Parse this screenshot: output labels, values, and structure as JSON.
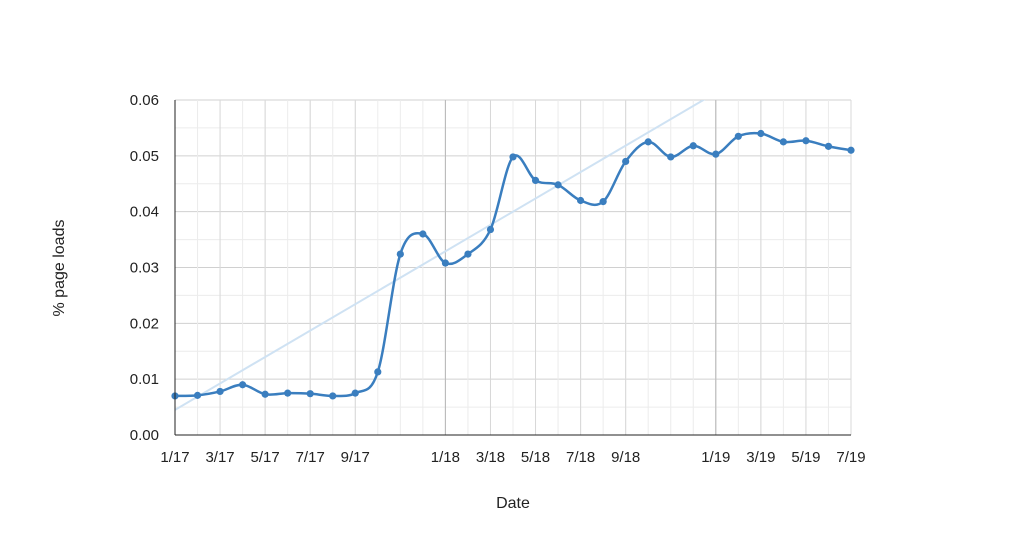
{
  "chart_data": {
    "type": "line",
    "xlabel": "Date",
    "ylabel": "% page loads",
    "ylim": [
      0,
      0.06
    ],
    "yticks": [
      "0.00",
      "0.01",
      "0.02",
      "0.03",
      "0.04",
      "0.05",
      "0.06"
    ],
    "xticks": [
      {
        "date": "2017-01",
        "label": "1/17"
      },
      {
        "date": "2017-03",
        "label": "3/17"
      },
      {
        "date": "2017-05",
        "label": "5/17"
      },
      {
        "date": "2017-07",
        "label": "7/17"
      },
      {
        "date": "2017-09",
        "label": "9/17"
      },
      {
        "date": "2018-01",
        "label": "1/18"
      },
      {
        "date": "2018-03",
        "label": "3/18"
      },
      {
        "date": "2018-05",
        "label": "5/18"
      },
      {
        "date": "2018-07",
        "label": "7/18"
      },
      {
        "date": "2018-09",
        "label": "9/18"
      },
      {
        "date": "2019-01",
        "label": "1/19"
      },
      {
        "date": "2019-03",
        "label": "3/19"
      },
      {
        "date": "2019-05",
        "label": "5/19"
      },
      {
        "date": "2019-07",
        "label": "7/19"
      }
    ],
    "xlim": [
      "2017-01",
      "2019-07"
    ],
    "grid": true,
    "major_gridlines_x": [
      "2018-01",
      "2019-01"
    ],
    "series": [
      {
        "color": "#3a7ebf",
        "x": [
          "2017-01",
          "2017-02",
          "2017-03",
          "2017-04",
          "2017-05",
          "2017-06",
          "2017-07",
          "2017-08",
          "2017-09",
          "2017-10",
          "2017-11",
          "2017-12",
          "2018-01",
          "2018-02",
          "2018-03",
          "2018-04",
          "2018-05",
          "2018-06",
          "2018-07",
          "2018-08",
          "2018-09",
          "2018-10",
          "2018-11",
          "2018-12",
          "2019-01",
          "2019-02",
          "2019-03",
          "2019-04",
          "2019-05",
          "2019-06",
          "2019-07"
        ],
        "y": [
          0.007,
          0.0071,
          0.0078,
          0.009,
          0.0073,
          0.0075,
          0.0074,
          0.007,
          0.0075,
          0.0113,
          0.0324,
          0.036,
          0.0308,
          0.0324,
          0.0368,
          0.0498,
          0.0456,
          0.0448,
          0.042,
          0.0418,
          0.049,
          0.0525,
          0.0498,
          0.0518,
          0.0503,
          0.0535,
          0.054,
          0.0525,
          0.0527,
          0.0517,
          0.051
        ]
      }
    ],
    "trendline": {
      "color": "#cfe2f3",
      "x": [
        "2017-01",
        "2019-07"
      ],
      "y": [
        0.0045,
        0.0755
      ]
    }
  }
}
